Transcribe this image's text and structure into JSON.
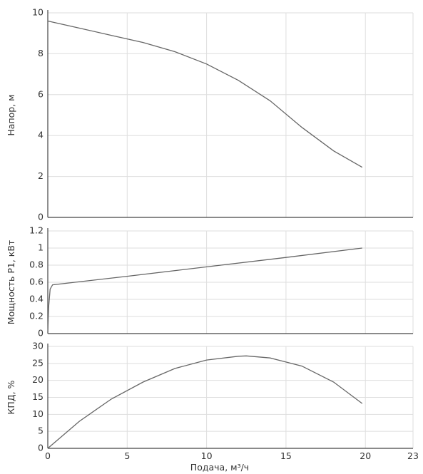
{
  "chart_data": [
    {
      "type": "line",
      "ylabel": "Напор, м",
      "xlim": [
        0,
        23
      ],
      "ylim": [
        0,
        10
      ],
      "xticks": [
        "0",
        "5",
        "10",
        "15",
        "20",
        "23"
      ],
      "yticks": [
        "0",
        "2",
        "4",
        "6",
        "8",
        "10"
      ],
      "grid": true,
      "series": [
        {
          "x": [
            0,
            2,
            4,
            6,
            8,
            10,
            12,
            14,
            16,
            18,
            19.8
          ],
          "y": [
            9.6,
            9.25,
            8.9,
            8.55,
            8.1,
            7.5,
            6.7,
            5.7,
            4.4,
            3.25,
            2.45
          ]
        }
      ]
    },
    {
      "type": "line",
      "ylabel": "Мощность P1, кВт",
      "xlim": [
        0,
        23
      ],
      "ylim": [
        0,
        1.2
      ],
      "xticks": [
        "0",
        "5",
        "10",
        "15",
        "20",
        "23"
      ],
      "yticks": [
        "0",
        "0.2",
        "0.4",
        "0.6",
        "0.8",
        "1",
        "1.2"
      ],
      "grid": true,
      "series": [
        {
          "x": [
            0,
            0.05,
            0.15,
            0.3,
            5,
            10,
            15,
            19.8
          ],
          "y": [
            0,
            0.3,
            0.52,
            0.57,
            0.67,
            0.78,
            0.89,
            1.0
          ]
        }
      ]
    },
    {
      "type": "line",
      "ylabel": "КПД, %",
      "xlabel": "Подача, м³/ч",
      "xlim": [
        0,
        23
      ],
      "ylim": [
        0,
        30
      ],
      "xticks": [
        "0",
        "5",
        "10",
        "15",
        "20",
        "23"
      ],
      "yticks": [
        "0",
        "5",
        "10",
        "15",
        "20",
        "25",
        "30"
      ],
      "grid": true,
      "series": [
        {
          "x": [
            0,
            2,
            4,
            6,
            8,
            10,
            12,
            12.5,
            14,
            16,
            18,
            19.8
          ],
          "y": [
            0,
            8,
            14.5,
            19.5,
            23.5,
            26,
            27.1,
            27.2,
            26.6,
            24.2,
            19.5,
            13.2
          ]
        }
      ]
    }
  ]
}
